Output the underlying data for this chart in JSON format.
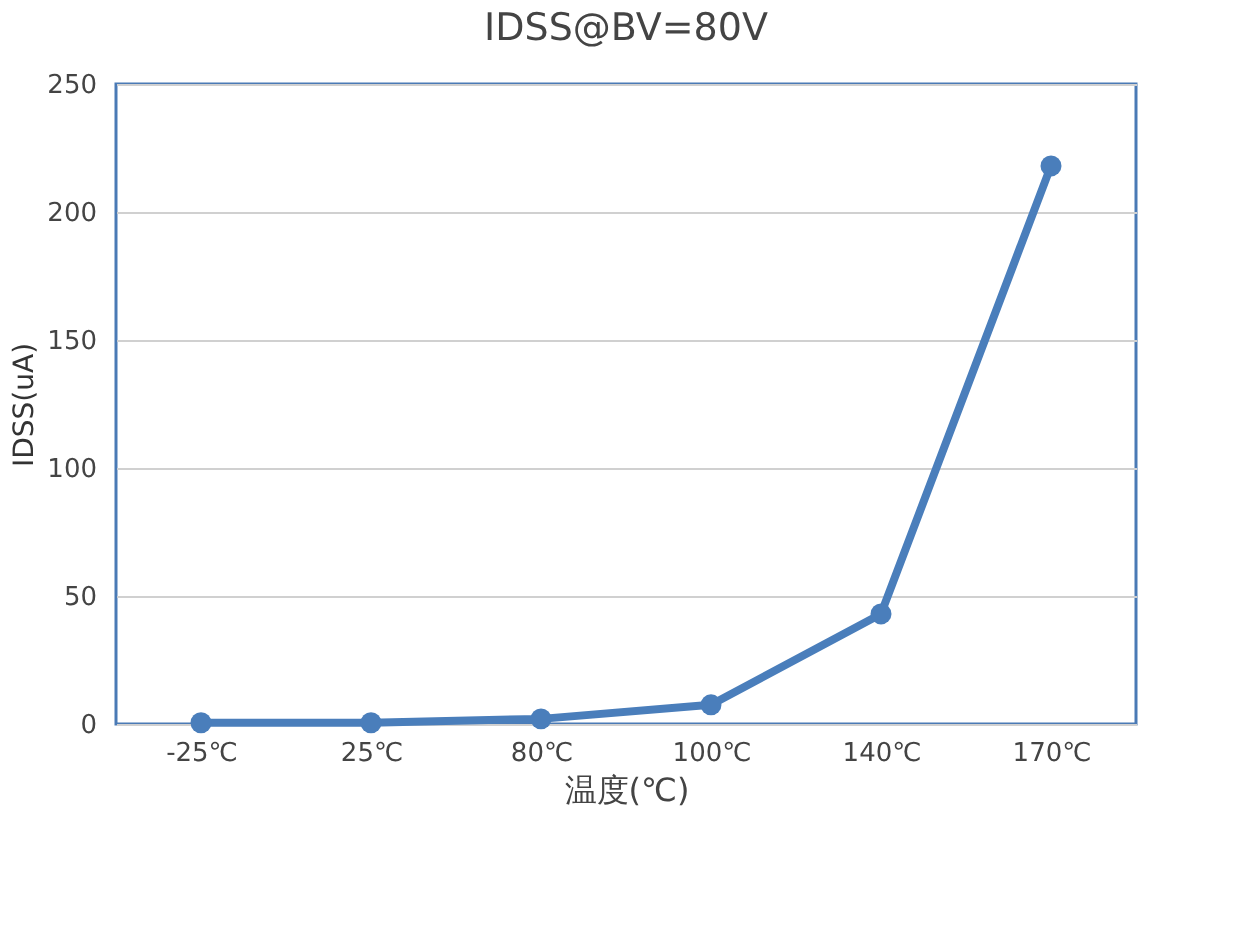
{
  "chart_data": {
    "type": "line",
    "title": "IDSS@BV=80V",
    "xlabel": "温度(℃)",
    "ylabel": "IDSS(uA)",
    "categories": [
      "-25℃",
      "25℃",
      "80℃",
      "100℃",
      "140℃",
      "170℃"
    ],
    "series": [
      {
        "color": "#4a7ebb",
        "values": [
          0.5,
          0.5,
          2,
          7.5,
          43,
          218
        ]
      }
    ],
    "ylim": [
      0,
      250
    ],
    "yticks": [
      0,
      50,
      100,
      150,
      200,
      250
    ],
    "grid": "y",
    "marker": "circle",
    "line_style": "solid"
  }
}
